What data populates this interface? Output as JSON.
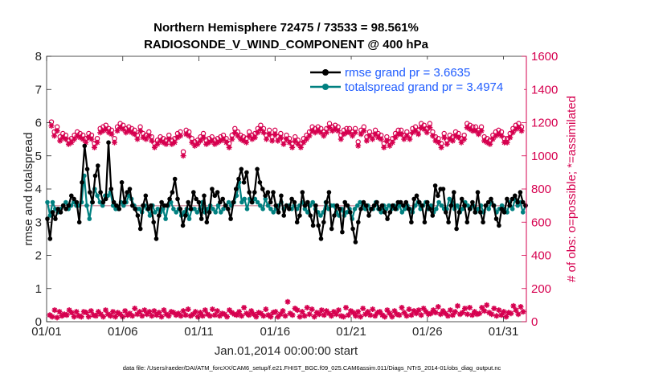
{
  "chart_data": {
    "type": "line",
    "title": "Northern Hemisphere 72475 / 73533 = 98.561%",
    "subtitle": "RADIOSONDE_V_WIND_COMPONENT @ 400 hPa",
    "xlabel": "Jan.01,2014 00:00:00 start",
    "ylabel": "rmse and totalspread",
    "ylabel_right": "# of obs: o=possible; *=assimilated",
    "xlim": [
      0,
      31.5
    ],
    "ylim": [
      0,
      8
    ],
    "ylim_right": [
      0,
      1600
    ],
    "x_ticks": [
      0,
      5,
      10,
      15,
      20,
      25,
      30
    ],
    "x_tick_labels": [
      "01/01",
      "01/06",
      "01/11",
      "01/16",
      "01/21",
      "01/26",
      "01/31"
    ],
    "y_ticks": [
      "0",
      "1",
      "2",
      "3",
      "4",
      "5",
      "6",
      "7",
      "8"
    ],
    "y_ticks_right": [
      "0",
      "200",
      "400",
      "600",
      "800",
      "1000",
      "1200",
      "1400",
      "1600"
    ],
    "grid": false,
    "legend_position": "top-right",
    "footnote": "data file: /Users/raeder/DAI/ATM_forcXX/CAM6_setup/f.e21.FHIST_BGC.f09_025.CAM6assim.011/Diags_NTrS_2014-01/obs_diag_output.nc",
    "reference_line": {
      "y": 3.4974,
      "color": "#d9a3b0"
    },
    "series": [
      {
        "name": "rmse grand pr = 3.6635",
        "color": "#000000",
        "marker": "hexagon",
        "values": [
          3.1,
          2.5,
          3.3,
          3.1,
          3.4,
          3.3,
          3.5,
          3.4,
          3.5,
          3.8,
          3.7,
          3.6,
          3.0,
          4.2,
          5.3,
          4.6,
          3.9,
          3.6,
          4.4,
          4.7,
          3.9,
          3.6,
          3.7,
          5.4,
          4.0,
          3.6,
          3.5,
          3.4,
          4.2,
          3.6,
          3.9,
          4.0,
          3.5,
          3.4,
          3.2,
          2.8,
          3.5,
          3.8,
          3.4,
          3.5,
          3.0,
          2.5,
          3.2,
          3.6,
          3.5,
          3.5,
          3.7,
          3.9,
          4.3,
          3.7,
          3.4,
          2.9,
          3.2,
          3.6,
          3.4,
          3.9,
          3.7,
          3.6,
          3.1,
          3.8,
          3.0,
          3.3,
          4.0,
          3.8,
          3.9,
          3.6,
          3.7,
          3.5,
          3.4,
          3.1,
          3.6,
          4.0,
          4.3,
          4.6,
          4.2,
          4.5,
          3.9,
          3.6,
          3.9,
          4.6,
          4.2,
          4.0,
          3.8,
          3.9,
          3.6,
          3.9,
          3.5,
          3.3,
          3.8,
          3.2,
          3.5,
          3.4,
          3.7,
          3.6,
          3.0,
          3.2,
          3.9,
          3.5,
          3.6,
          3.2,
          2.9,
          3.5,
          2.9,
          2.5,
          3.0,
          3.6,
          3.9,
          2.8,
          3.2,
          3.5,
          3.4,
          2.7,
          3.6,
          3.5,
          3.3,
          2.8,
          2.4,
          3.0,
          3.4,
          3.6,
          3.5,
          3.2,
          3.4,
          3.5,
          3.6,
          3.4,
          3.5,
          3.3,
          3.1,
          3.3,
          3.5,
          3.4,
          3.6,
          3.6,
          3.5,
          3.6,
          3.4,
          3.0,
          3.7,
          3.8,
          3.6,
          3.5,
          3.0,
          3.6,
          3.4,
          3.2,
          4.1,
          3.8,
          4.0,
          4.0,
          3.3,
          3.0,
          3.5,
          3.9,
          2.8,
          3.3,
          3.7,
          3.5,
          3.0,
          3.4,
          3.6,
          3.3,
          3.9,
          3.3,
          3.0,
          3.5,
          3.6,
          3.7,
          3.5,
          3.1,
          2.9,
          3.4,
          3.3,
          3.7,
          3.5,
          3.7,
          3.8,
          3.6,
          3.9,
          3.6,
          3.5
        ]
      },
      {
        "name": "totalspread grand pr = 3.4974",
        "color": "#008080",
        "marker": "circle",
        "values": [
          3.6,
          3.2,
          3.6,
          3.4,
          3.3,
          3.4,
          3.5,
          3.6,
          3.4,
          3.5,
          3.6,
          3.5,
          3.5,
          3.6,
          4.4,
          3.5,
          3.1,
          3.6,
          4.0,
          3.8,
          3.6,
          3.5,
          3.8,
          3.8,
          3.9,
          3.5,
          3.4,
          3.4,
          3.6,
          3.5,
          3.6,
          3.8,
          3.7,
          3.5,
          3.4,
          3.4,
          3.3,
          3.5,
          3.4,
          3.2,
          3.5,
          3.3,
          3.4,
          3.3,
          3.4,
          3.1,
          3.5,
          3.6,
          3.4,
          3.3,
          3.4,
          3.2,
          3.3,
          3.4,
          3.1,
          3.4,
          3.4,
          3.3,
          3.4,
          3.6,
          3.3,
          3.4,
          3.5,
          3.4,
          3.3,
          3.5,
          3.3,
          3.4,
          3.5,
          3.6,
          3.5,
          3.6,
          3.8,
          4.2,
          3.6,
          3.7,
          3.4,
          3.7,
          3.6,
          3.7,
          3.6,
          3.5,
          3.4,
          3.7,
          3.5,
          3.4,
          3.3,
          3.4,
          3.5,
          3.6,
          3.4,
          3.5,
          3.5,
          3.4,
          3.5,
          3.4,
          3.5,
          3.6,
          3.4,
          3.3,
          3.5,
          3.6,
          3.4,
          3.3,
          3.2,
          3.3,
          3.6,
          3.4,
          3.5,
          3.5,
          3.3,
          3.2,
          3.4,
          3.2,
          3.3,
          3.4,
          3.1,
          3.4,
          3.5,
          3.6,
          3.5,
          3.4,
          3.5,
          3.4,
          3.4,
          3.6,
          3.4,
          3.3,
          3.5,
          3.4,
          3.5,
          3.4,
          3.5,
          3.4,
          3.5,
          3.3,
          3.4,
          3.5,
          3.4,
          3.3,
          3.5,
          3.6,
          3.4,
          3.5,
          3.6,
          3.4,
          3.5,
          3.3,
          3.4,
          3.6,
          3.5,
          3.4,
          3.4,
          3.7,
          3.6,
          3.4,
          3.5,
          3.3,
          3.4,
          3.6,
          3.5,
          3.4,
          3.5,
          3.3,
          3.4,
          3.5,
          3.3,
          3.5,
          3.4,
          3.6,
          3.5,
          3.3,
          3.4,
          3.5,
          3.4,
          3.3,
          3.6,
          3.4,
          3.7,
          3.5,
          3.6,
          3.3,
          3.5
        ]
      }
    ],
    "obs_possible": {
      "name": "possible",
      "marker": "o",
      "color": "#d6004f",
      "values": [
        1190,
        1130,
        1160,
        1100,
        1120,
        1110,
        1080,
        1090,
        1110,
        1130,
        1120,
        1110,
        1090,
        1120,
        1110,
        1060,
        1090,
        1150,
        1160,
        1170,
        1150,
        1140,
        1090,
        1160,
        1180,
        1170,
        1150,
        1160,
        1150,
        1140,
        1110,
        1160,
        1120,
        1110,
        1130,
        1100,
        1060,
        1080,
        1100,
        1090,
        1080,
        1110,
        1080,
        1090,
        1120,
        1130,
        1010,
        1140,
        1130,
        1090,
        1070,
        1080,
        1100,
        1120,
        1080,
        1090,
        1100,
        1080,
        1090,
        1100,
        1110,
        1090,
        1060,
        1110,
        1150,
        1130,
        1110,
        1100,
        1090,
        1130,
        1110,
        1120,
        1150,
        1170,
        1150,
        1110,
        1140,
        1100,
        1140,
        1100,
        1120,
        1080,
        1110,
        1090,
        1060,
        1100,
        1080,
        1060,
        1090,
        1110,
        1130,
        1160,
        1150,
        1160,
        1150,
        1130,
        1150,
        1180,
        1160,
        1170,
        1160,
        1110,
        1140,
        1150,
        1150,
        1130,
        1150,
        1070,
        1140,
        1160,
        1100,
        1130,
        1110,
        1140,
        1120,
        1110,
        1060,
        1100,
        1070,
        1090,
        1120,
        1140,
        1140,
        1110,
        1130,
        1110,
        1150,
        1160,
        1140,
        1180,
        1170,
        1150,
        1180,
        1130,
        1100,
        1090,
        1060,
        1120,
        1080,
        1110,
        1100,
        1130,
        1120,
        1090,
        1110,
        1180,
        1170,
        1160,
        1160,
        1140,
        1160,
        1100,
        1090,
        1080,
        1110,
        1130,
        1140,
        1130,
        1090,
        1090,
        1120,
        1150,
        1170,
        1180,
        1160
      ]
    },
    "obs_possible_low": {
      "name": "assimilated (lower row)",
      "marker": "*",
      "color": "#d6004f",
      "values": [
        40,
        30,
        70,
        25,
        60,
        35,
        45,
        40,
        70,
        55,
        30,
        60,
        35,
        30,
        60,
        55,
        30,
        65,
        40,
        35,
        60,
        45,
        30,
        70,
        45,
        35,
        60,
        30,
        55,
        45,
        30,
        65,
        40,
        50,
        35,
        80,
        45,
        60,
        35,
        70,
        45,
        60,
        35,
        65,
        40,
        55,
        30,
        70,
        45,
        35,
        60,
        55,
        40,
        50,
        35,
        65,
        40,
        75,
        35,
        45,
        60,
        30,
        55,
        35,
        70,
        45,
        35,
        75,
        40,
        65,
        35,
        50,
        45,
        30,
        70,
        55,
        45,
        40,
        60,
        35,
        85,
        50,
        40,
        65,
        45,
        30,
        55,
        50,
        35,
        75,
        40,
        30,
        55,
        60,
        30,
        45,
        65,
        35,
        120,
        50,
        40,
        80,
        70,
        30,
        60,
        35,
        85,
        45,
        75,
        30,
        55,
        45,
        70,
        40,
        65,
        50,
        35,
        60,
        45,
        70,
        35,
        30,
        85,
        40,
        65,
        55,
        35,
        60,
        30,
        80,
        45,
        60,
        40,
        75,
        35,
        55,
        60,
        40,
        30,
        70,
        50,
        30,
        65,
        45,
        40,
        85,
        55,
        35,
        75,
        40,
        65,
        50,
        70,
        40,
        80,
        60,
        45,
        50,
        70,
        55,
        90,
        45,
        65,
        50,
        35,
        70,
        40,
        60,
        95,
        45,
        55,
        80,
        45,
        85,
        40,
        60,
        45,
        50,
        85,
        65,
        100,
        55,
        45,
        80,
        35,
        70,
        40,
        60,
        30,
        55,
        50,
        95,
        70,
        45,
        90,
        60
      ]
    }
  },
  "legend": {
    "rmse_label": "rmse grand pr = 3.6635",
    "spread_label": "totalspread grand pr = 3.4974"
  }
}
